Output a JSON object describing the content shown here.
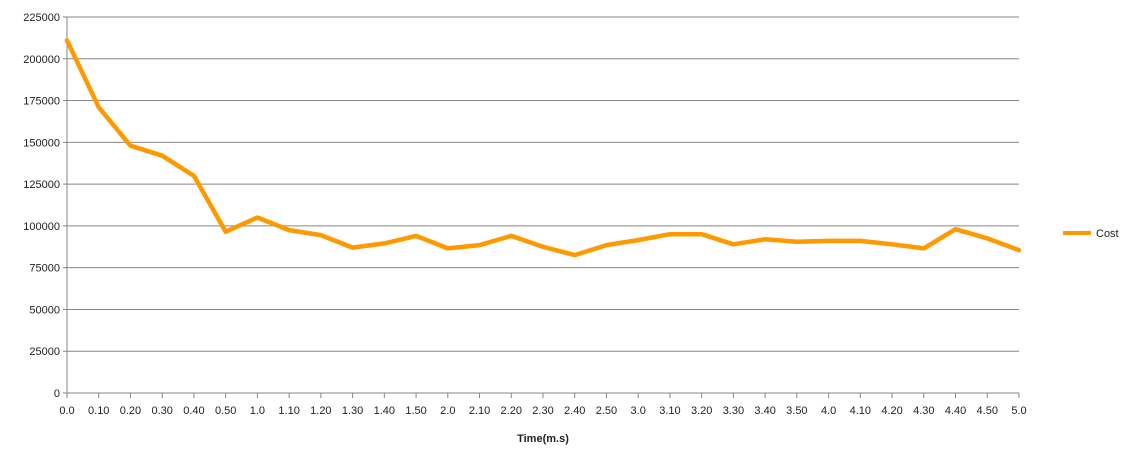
{
  "chart_data": {
    "type": "line",
    "title": "",
    "xlabel": "Time(m.s)",
    "ylabel": "",
    "ylim": [
      0,
      225000
    ],
    "y_ticks": [
      0,
      25000,
      50000,
      75000,
      100000,
      125000,
      150000,
      175000,
      200000,
      225000
    ],
    "y_tick_labels": [
      "0",
      "25000",
      "50000",
      "75000",
      "100000",
      "125000",
      "150000",
      "175000",
      "200000",
      "225000"
    ],
    "categories": [
      "0.0",
      "0.10",
      "0.20",
      "0.30",
      "0.40",
      "0.50",
      "1.0",
      "1.10",
      "1.20",
      "1.30",
      "1.40",
      "1.50",
      "2.0",
      "2.10",
      "2.20",
      "2.30",
      "2.40",
      "2.50",
      "3.0",
      "3.10",
      "3.20",
      "3.30",
      "3.40",
      "3.50",
      "4.0",
      "4.10",
      "4.20",
      "4.30",
      "4.40",
      "4.50",
      "5.0"
    ],
    "series": [
      {
        "name": "Cost",
        "color": "#ff9900",
        "values": [
          211000,
          171000,
          148000,
          142000,
          130000,
          96500,
          105000,
          97500,
          94500,
          87000,
          89500,
          94000,
          86500,
          88500,
          94000,
          87500,
          82500,
          88500,
          91500,
          95000,
          95000,
          89000,
          92000,
          90500,
          91000,
          91000,
          89000,
          86500,
          98000,
          92500,
          85500
        ]
      }
    ],
    "grid": true,
    "legend_position": "right"
  }
}
